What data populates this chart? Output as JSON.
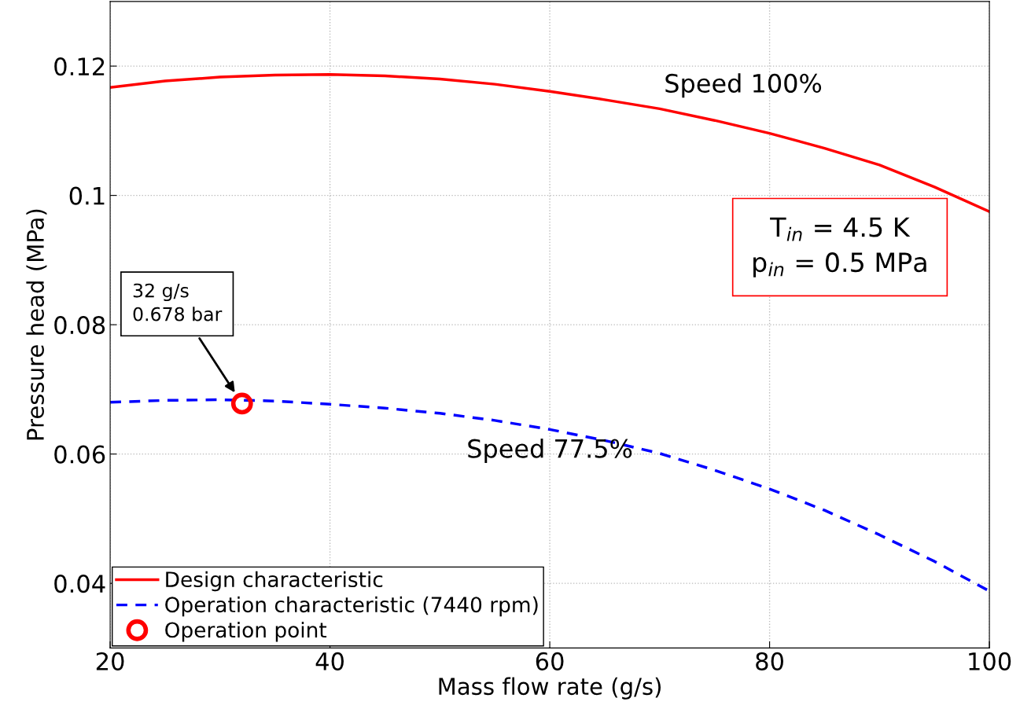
{
  "chart_data": {
    "type": "line",
    "xlabel": "Mass flow rate (g/s)",
    "ylabel": "Pressure head (MPa)",
    "xlim": [
      20,
      100
    ],
    "ylim": [
      0.03,
      0.13
    ],
    "xticks": [
      20,
      40,
      60,
      80,
      100
    ],
    "yticks": [
      0.04,
      0.06,
      0.08,
      0.1,
      0.12
    ],
    "grid": true,
    "legend": "bottom left",
    "series": [
      {
        "name": "Design characteristic",
        "color": "#ff0000",
        "line_style": "solid",
        "marker": "none",
        "x": [
          20,
          25,
          30,
          35,
          40,
          45,
          50,
          55,
          60,
          65,
          70,
          75,
          80,
          85,
          90,
          95,
          100
        ],
        "values": [
          0.1167,
          0.1177,
          0.1183,
          0.1186,
          0.1187,
          0.1185,
          0.118,
          0.1172,
          0.1161,
          0.1148,
          0.1134,
          0.1116,
          0.1096,
          0.1073,
          0.1047,
          0.1013,
          0.0975
        ]
      },
      {
        "name": "Operation characteristic (7440 rpm)",
        "color": "#0000ff",
        "line_style": "dashed",
        "marker": "none",
        "x": [
          20,
          25,
          30,
          35,
          40,
          45,
          50,
          55,
          60,
          65,
          70,
          75,
          80,
          85,
          90,
          95,
          100
        ],
        "values": [
          0.068,
          0.0683,
          0.0684,
          0.0682,
          0.0677,
          0.0671,
          0.0663,
          0.0652,
          0.0638,
          0.0621,
          0.0601,
          0.0575,
          0.0546,
          0.0513,
          0.0475,
          0.0434,
          0.0388
        ]
      },
      {
        "name": "Operation point",
        "type": "scatter",
        "color": "#ff0000",
        "marker": "circle",
        "x": [
          32
        ],
        "values": [
          0.0678
        ]
      }
    ],
    "annotations": [
      "Speed 100%",
      "Speed 77.5%",
      "32 g/s\n0.678 bar",
      "T$_{in}$ = 4.5 K\np$_{in}$ = 0.5 MPa"
    ]
  }
}
